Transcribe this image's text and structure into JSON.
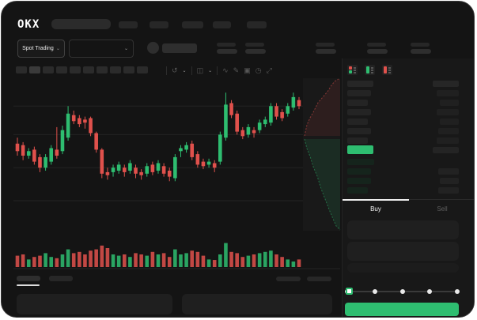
{
  "brand": {
    "logo": "OKX"
  },
  "market_selector": {
    "label": "Spot Trading",
    "chevron": "⌄"
  },
  "toolbar_icons": {
    "undo": "↺",
    "layout": "◫",
    "wave": "∿",
    "draw": "✎",
    "camera": "▣",
    "clock": "◷",
    "expand": "⤢",
    "chevron": "⌄"
  },
  "trade": {
    "tabs": [
      {
        "label": "Buy",
        "active": true
      },
      {
        "label": "Sell",
        "active": false
      }
    ],
    "slider": {
      "percent": 0,
      "stops": 5
    },
    "submit_label": ""
  },
  "colors": {
    "green": "#2ebd70",
    "red": "#e0514c",
    "bg": "#141414",
    "panel": "#1f1f1f",
    "grid": "#232323",
    "bid_tint": "#15241c"
  },
  "orderbook": {
    "ask_rows": {
      "left_widths": [
        30,
        26,
        30,
        26,
        30,
        26
      ],
      "right_widths": [
        28,
        24,
        28,
        24,
        26,
        28
      ]
    },
    "last_price_row": {
      "color": "#2ebd70",
      "width": 33
    },
    "bid_rows": {
      "left_widths": [
        34,
        30,
        30,
        26
      ],
      "right_widths": [
        0,
        26,
        24,
        26
      ]
    }
  },
  "chart_data": {
    "type": "candlestick+volume+depth",
    "note": "prices on relative 0-100 scale, no axis labels visible in screenshot",
    "ylim": [
      0,
      100
    ],
    "gridline_prices": [
      83,
      64,
      42,
      20
    ],
    "candles_ohlc_as_o_h_l_c": [
      [
        58,
        62,
        50,
        53
      ],
      [
        57,
        59,
        47,
        50
      ],
      [
        50,
        55,
        48,
        53
      ],
      [
        54,
        56,
        44,
        46
      ],
      [
        49,
        51,
        39,
        42
      ],
      [
        42,
        51,
        40,
        49
      ],
      [
        46,
        57,
        44,
        55
      ],
      [
        54,
        69,
        48,
        50
      ],
      [
        53,
        70,
        51,
        67
      ],
      [
        62,
        83,
        60,
        78
      ],
      [
        77,
        80,
        71,
        73
      ],
      [
        75,
        77,
        69,
        71
      ],
      [
        74,
        76,
        68,
        72
      ],
      [
        75,
        76,
        63,
        65
      ],
      [
        65,
        66,
        52,
        54
      ],
      [
        54,
        55,
        35,
        38
      ],
      [
        39,
        42,
        34,
        37
      ],
      [
        39,
        44,
        36,
        42
      ],
      [
        40,
        46,
        38,
        44
      ],
      [
        42,
        44,
        36,
        39
      ],
      [
        40,
        47,
        38,
        45
      ],
      [
        42,
        44,
        35,
        38
      ],
      [
        39,
        41,
        34,
        37
      ],
      [
        38,
        45,
        36,
        43
      ],
      [
        44,
        46,
        37,
        39
      ],
      [
        40,
        47,
        38,
        45
      ],
      [
        43,
        45,
        36,
        38
      ],
      [
        40,
        42,
        33,
        36
      ],
      [
        35,
        51,
        33,
        49
      ],
      [
        53,
        57,
        49,
        55
      ],
      [
        54,
        59,
        52,
        57
      ],
      [
        58,
        60,
        47,
        49
      ],
      [
        51,
        53,
        42,
        44
      ],
      [
        46,
        48,
        41,
        43
      ],
      [
        44,
        48,
        42,
        46
      ],
      [
        45,
        47,
        39,
        42
      ],
      [
        46,
        66,
        44,
        64
      ],
      [
        62,
        92,
        60,
        84
      ],
      [
        85,
        87,
        75,
        77
      ],
      [
        78,
        80,
        64,
        66
      ],
      [
        67,
        69,
        61,
        63
      ],
      [
        64,
        71,
        62,
        69
      ],
      [
        67,
        69,
        62,
        65
      ],
      [
        67,
        74,
        65,
        72
      ],
      [
        71,
        76,
        69,
        74
      ],
      [
        72,
        85,
        70,
        83
      ],
      [
        83,
        85,
        74,
        76
      ],
      [
        79,
        81,
        73,
        75
      ],
      [
        78,
        85,
        76,
        83
      ],
      [
        82,
        92,
        80,
        89
      ],
      [
        87,
        89,
        81,
        83
      ]
    ],
    "volumes_relative": [
      0.45,
      0.5,
      0.3,
      0.4,
      0.45,
      0.55,
      0.4,
      0.35,
      0.5,
      0.7,
      0.55,
      0.6,
      0.5,
      0.65,
      0.7,
      0.85,
      0.75,
      0.5,
      0.45,
      0.5,
      0.4,
      0.55,
      0.5,
      0.45,
      0.6,
      0.5,
      0.55,
      0.4,
      0.7,
      0.5,
      0.55,
      0.65,
      0.6,
      0.45,
      0.3,
      0.28,
      0.5,
      0.95,
      0.6,
      0.55,
      0.4,
      0.45,
      0.5,
      0.55,
      0.6,
      0.65,
      0.5,
      0.4,
      0.3,
      0.22,
      0.3
    ],
    "depth": {
      "ask_curve": [
        [
          383,
          170
        ],
        [
          386,
          156
        ],
        [
          390,
          147
        ],
        [
          394,
          140
        ],
        [
          400,
          128
        ],
        [
          406,
          121
        ],
        [
          412,
          114
        ],
        [
          417,
          106
        ],
        [
          421,
          101
        ],
        [
          426,
          98
        ]
      ],
      "ask_close": [
        [
          428,
          98
        ],
        [
          428,
          170
        ]
      ],
      "bid_curve": [
        [
          383,
          174
        ],
        [
          386,
          186
        ],
        [
          390,
          196
        ],
        [
          394,
          209
        ],
        [
          399,
          221
        ],
        [
          404,
          237
        ],
        [
          409,
          250
        ],
        [
          414,
          263
        ],
        [
          419,
          275
        ],
        [
          423,
          284
        ],
        [
          428,
          289
        ]
      ],
      "bid_close": [
        [
          428,
          174
        ]
      ]
    }
  }
}
